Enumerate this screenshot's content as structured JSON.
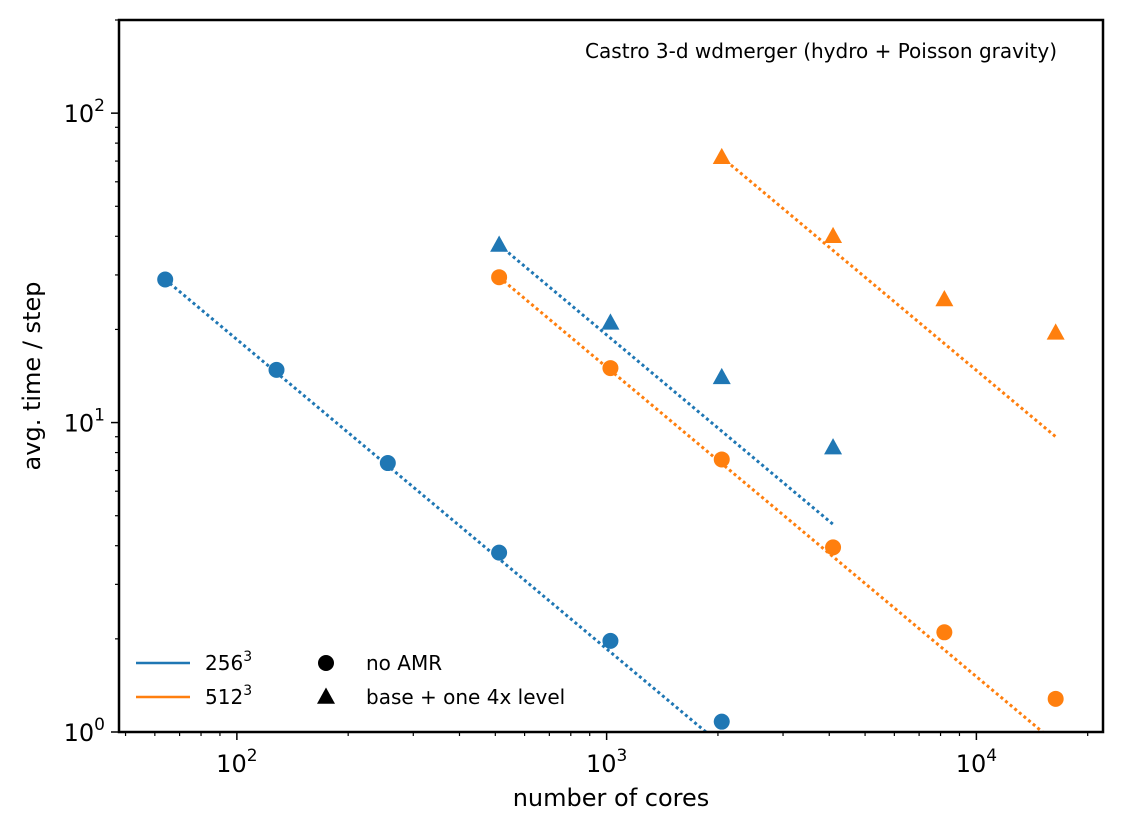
{
  "chart_data": {
    "type": "scatter",
    "annotation": "Castro 3-d wdmerger (hydro + Poisson gravity)",
    "xlabel": "number of cores",
    "ylabel": "avg. time / step",
    "xscale": "log",
    "yscale": "log",
    "xlim": [
      48,
      22000
    ],
    "ylim": [
      1,
      200
    ],
    "grid": false,
    "x_ticks": [
      {
        "value": 100,
        "base": "10",
        "exp": "2"
      },
      {
        "value": 1000,
        "base": "10",
        "exp": "3"
      },
      {
        "value": 10000,
        "base": "10",
        "exp": "4"
      }
    ],
    "y_ticks": [
      {
        "value": 1,
        "base": "10",
        "exp": "0"
      },
      {
        "value": 10,
        "base": "10",
        "exp": "1"
      },
      {
        "value": 100,
        "base": "10",
        "exp": "2"
      }
    ],
    "colors": {
      "256": "#1f77b4",
      "512": "#ff7f0e"
    },
    "series": [
      {
        "resolution": "256",
        "marker": "circle",
        "x": [
          64,
          128,
          256,
          512,
          1024,
          2048
        ],
        "y": [
          29.0,
          14.8,
          7.4,
          3.8,
          1.97,
          1.08
        ]
      },
      {
        "resolution": "256",
        "marker": "triangle",
        "x": [
          512,
          1024,
          2048,
          4096
        ],
        "y": [
          37.5,
          21.0,
          14.0,
          8.3
        ]
      },
      {
        "resolution": "512",
        "marker": "circle",
        "x": [
          512,
          1024,
          2048,
          4096,
          8192,
          16384
        ],
        "y": [
          29.5,
          15.0,
          7.6,
          3.95,
          2.1,
          1.28
        ]
      },
      {
        "resolution": "512",
        "marker": "triangle",
        "x": [
          2048,
          4096,
          8192,
          16384
        ],
        "y": [
          72.0,
          40.0,
          25.0,
          19.5
        ]
      }
    ],
    "ideal_lines": [
      {
        "resolution": "256",
        "x": [
          64,
          1900
        ],
        "y": [
          29.0,
          0.977
        ]
      },
      {
        "resolution": "256",
        "x": [
          512,
          4096
        ],
        "y": [
          37.5,
          4.69
        ]
      },
      {
        "resolution": "512",
        "x": [
          512,
          15500
        ],
        "y": [
          29.5,
          0.974
        ]
      },
      {
        "resolution": "512",
        "x": [
          2048,
          16384
        ],
        "y": [
          72.0,
          9.0
        ]
      }
    ],
    "legend": {
      "position": "bottom-left",
      "resolution_entries": [
        {
          "label": "256",
          "sup": "3",
          "color": "#1f77b4"
        },
        {
          "label": "512",
          "sup": "3",
          "color": "#ff7f0e"
        }
      ],
      "marker_entries": [
        {
          "marker": "circle",
          "label": "no AMR"
        },
        {
          "marker": "triangle",
          "label": "base + one 4x level"
        }
      ]
    }
  }
}
